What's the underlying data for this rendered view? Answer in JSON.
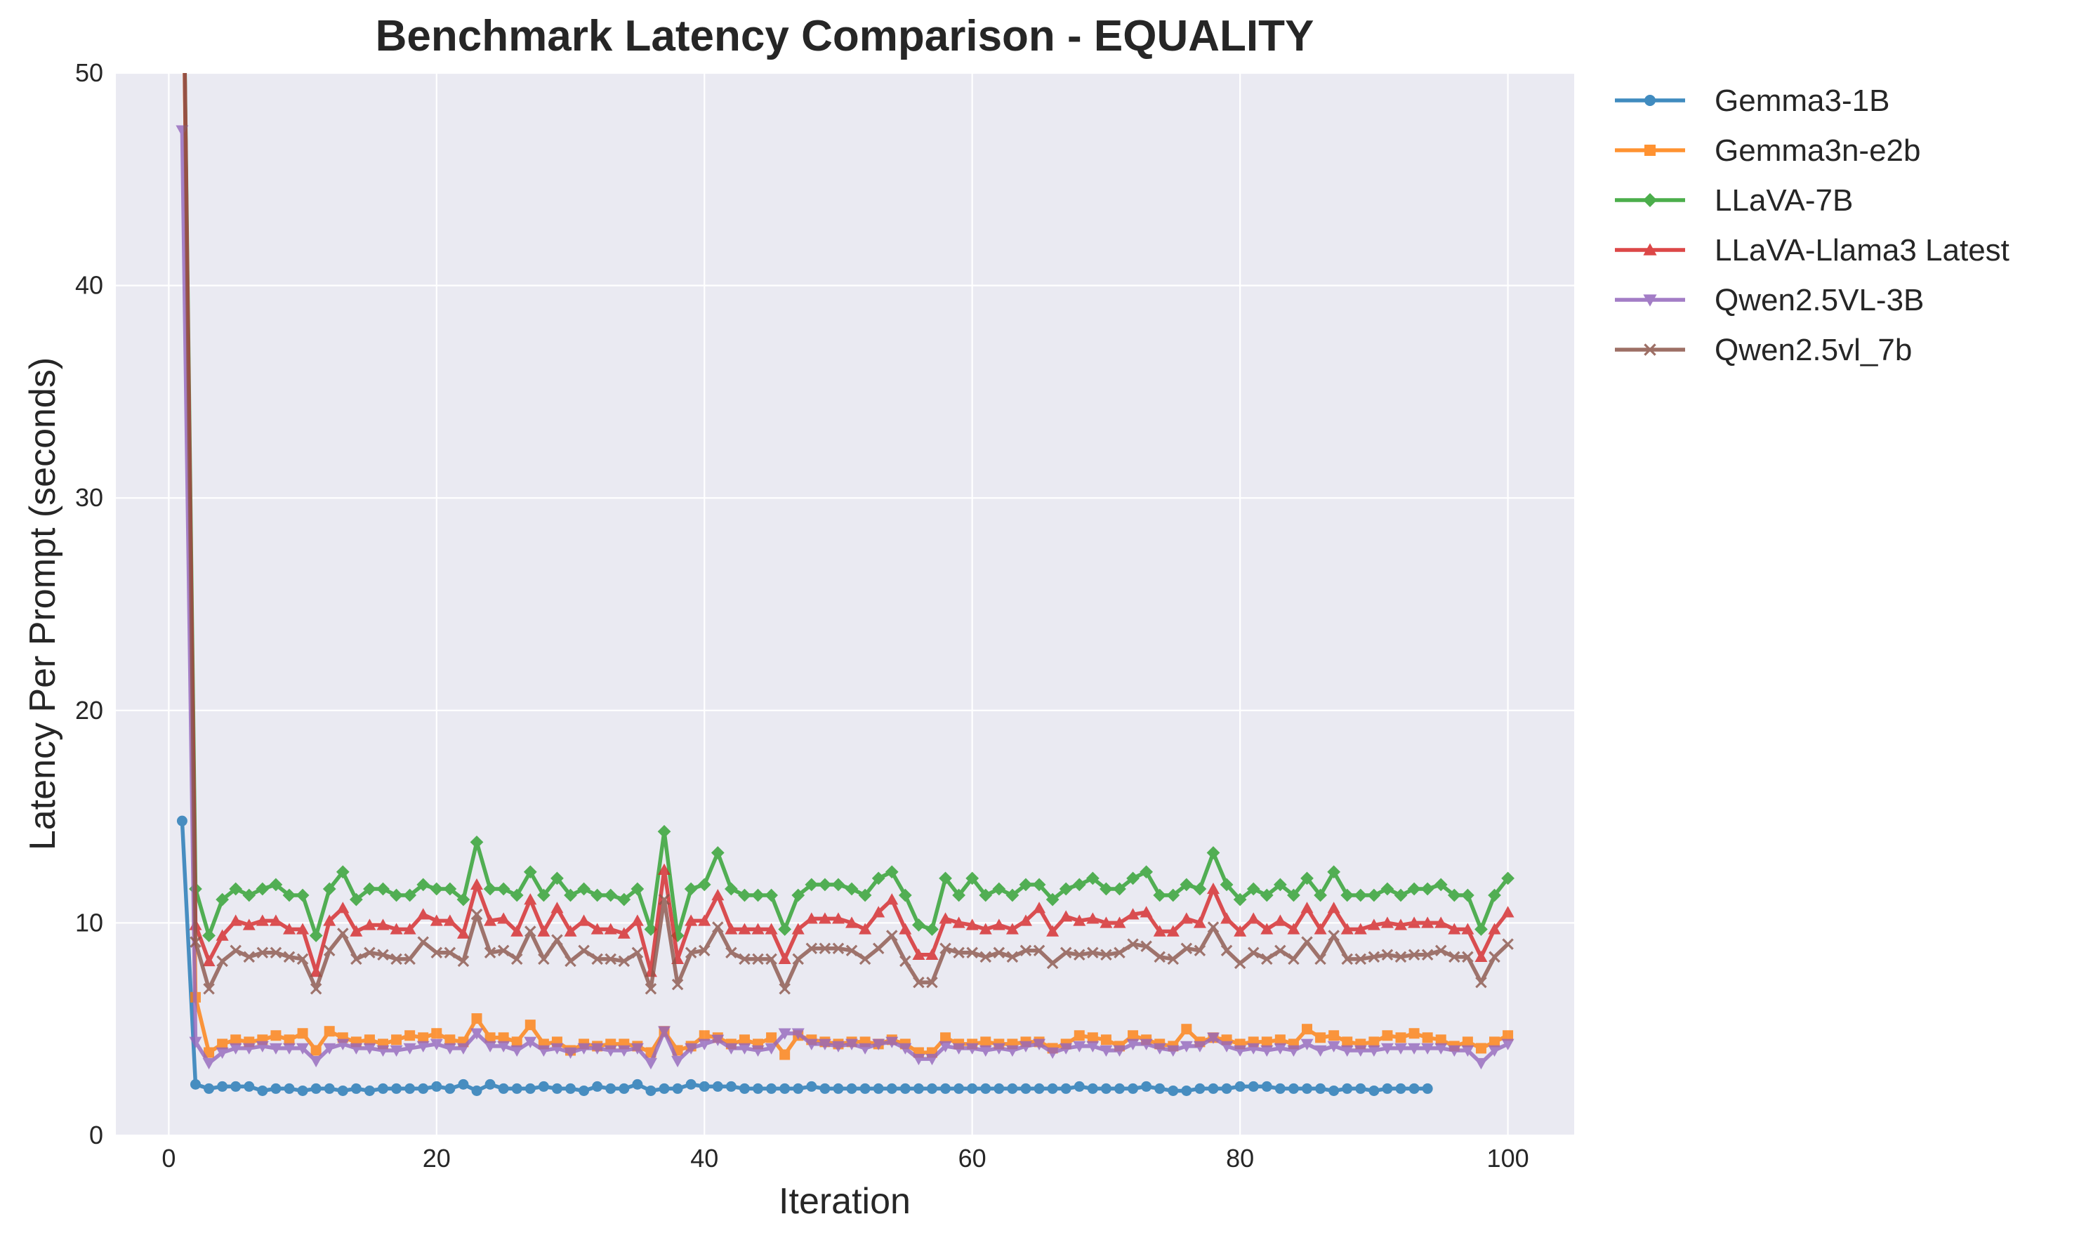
{
  "chart_data": {
    "type": "line",
    "title": "Benchmark Latency Comparison - EQUALITY",
    "xlabel": "Iteration",
    "ylabel": "Latency Per Prompt (seconds)",
    "xlim": [
      -3.95,
      104.95
    ],
    "ylim": [
      0,
      50
    ],
    "xticks": [
      0,
      20,
      40,
      60,
      80,
      100
    ],
    "yticks": [
      0,
      10,
      20,
      30,
      40,
      50
    ],
    "grid": true,
    "legend_position": "outside-right-top",
    "series": [
      {
        "name": "Gemma3-1B",
        "color": "#1f77b4",
        "marker": "circle",
        "x_start": 1,
        "values": [
          14.8,
          2.4,
          2.2,
          2.3,
          2.3,
          2.3,
          2.1,
          2.2,
          2.2,
          2.1,
          2.2,
          2.2,
          2.1,
          2.2,
          2.1,
          2.2,
          2.2,
          2.2,
          2.2,
          2.3,
          2.2,
          2.4,
          2.1,
          2.4,
          2.2,
          2.2,
          2.2,
          2.3,
          2.2,
          2.2,
          2.1,
          2.3,
          2.2,
          2.2,
          2.4,
          2.1,
          2.2,
          2.2,
          2.4,
          2.3,
          2.3,
          2.3,
          2.2,
          2.2,
          2.2,
          2.2,
          2.2,
          2.3,
          2.2,
          2.2,
          2.2,
          2.2,
          2.2,
          2.2,
          2.2,
          2.2,
          2.2,
          2.2,
          2.2,
          2.2,
          2.2,
          2.2,
          2.2,
          2.2,
          2.2,
          2.2,
          2.2,
          2.3,
          2.2,
          2.2,
          2.2,
          2.2,
          2.3,
          2.2,
          2.1,
          2.1,
          2.2,
          2.2,
          2.2,
          2.3,
          2.3,
          2.3,
          2.2,
          2.2,
          2.2,
          2.2,
          2.1,
          2.2,
          2.2,
          2.1,
          2.2,
          2.2,
          2.2,
          2.2
        ]
      },
      {
        "name": "Gemma3n-e2b",
        "color": "#ff7f0e",
        "marker": "square",
        "x_start": 1,
        "values": [
          60,
          6.5,
          3.9,
          4.3,
          4.5,
          4.4,
          4.5,
          4.7,
          4.5,
          4.8,
          4.0,
          4.9,
          4.6,
          4.4,
          4.5,
          4.3,
          4.5,
          4.7,
          4.6,
          4.8,
          4.5,
          4.4,
          5.5,
          4.6,
          4.6,
          4.4,
          5.2,
          4.3,
          4.4,
          4.0,
          4.3,
          4.2,
          4.3,
          4.3,
          4.2,
          3.9,
          4.9,
          4.0,
          4.2,
          4.7,
          4.6,
          4.3,
          4.5,
          4.3,
          4.6,
          3.8,
          4.7,
          4.5,
          4.4,
          4.3,
          4.4,
          4.4,
          4.3,
          4.5,
          4.3,
          3.9,
          3.9,
          4.6,
          4.3,
          4.3,
          4.4,
          4.3,
          4.3,
          4.4,
          4.4,
          4.1,
          4.3,
          4.7,
          4.6,
          4.5,
          4.2,
          4.7,
          4.5,
          4.3,
          4.2,
          5.0,
          4.4,
          4.6,
          4.5,
          4.3,
          4.4,
          4.4,
          4.5,
          4.3,
          5.0,
          4.6,
          4.7,
          4.4,
          4.3,
          4.4,
          4.7,
          4.6,
          4.8,
          4.6,
          4.5,
          4.2,
          4.4,
          4.1,
          4.4,
          4.7
        ]
      },
      {
        "name": "LLaVA-7B",
        "color": "#2ca02c",
        "marker": "diamond",
        "x_start": 1,
        "values": [
          60,
          11.6,
          9.4,
          11.1,
          11.6,
          11.3,
          11.6,
          11.8,
          11.3,
          11.3,
          9.4,
          11.6,
          12.4,
          11.1,
          11.6,
          11.6,
          11.3,
          11.3,
          11.8,
          11.6,
          11.6,
          11.1,
          13.8,
          11.6,
          11.6,
          11.3,
          12.4,
          11.3,
          12.1,
          11.3,
          11.6,
          11.3,
          11.3,
          11.1,
          11.6,
          9.7,
          14.3,
          9.4,
          11.6,
          11.8,
          13.3,
          11.6,
          11.3,
          11.3,
          11.3,
          9.7,
          11.3,
          11.8,
          11.8,
          11.8,
          11.6,
          11.3,
          12.1,
          12.4,
          11.3,
          9.9,
          9.7,
          12.1,
          11.3,
          12.1,
          11.3,
          11.6,
          11.3,
          11.8,
          11.8,
          11.1,
          11.6,
          11.8,
          12.1,
          11.6,
          11.6,
          12.1,
          12.4,
          11.3,
          11.3,
          11.8,
          11.6,
          13.3,
          11.8,
          11.1,
          11.6,
          11.3,
          11.8,
          11.3,
          12.1,
          11.3,
          12.4,
          11.3,
          11.3,
          11.3,
          11.6,
          11.3,
          11.6,
          11.6,
          11.8,
          11.3,
          11.3,
          9.7,
          11.3,
          12.1
        ]
      },
      {
        "name": "LLaVA-Llama3 Latest",
        "color": "#d62728",
        "marker": "triangle-up",
        "x_start": 1,
        "values": [
          60,
          9.9,
          8.2,
          9.4,
          10.1,
          9.9,
          10.1,
          10.1,
          9.7,
          9.7,
          7.7,
          10.1,
          10.7,
          9.6,
          9.9,
          9.9,
          9.7,
          9.7,
          10.4,
          10.1,
          10.1,
          9.5,
          11.8,
          10.1,
          10.2,
          9.6,
          11.1,
          9.6,
          10.7,
          9.6,
          10.1,
          9.7,
          9.7,
          9.5,
          10.1,
          7.7,
          12.5,
          8.3,
          10.1,
          10.1,
          11.3,
          9.7,
          9.7,
          9.7,
          9.7,
          8.3,
          9.7,
          10.2,
          10.2,
          10.2,
          10.0,
          9.7,
          10.5,
          11.1,
          9.7,
          8.5,
          8.5,
          10.2,
          10.0,
          9.9,
          9.7,
          9.9,
          9.7,
          10.1,
          10.7,
          9.6,
          10.3,
          10.1,
          10.2,
          10.0,
          10.0,
          10.4,
          10.5,
          9.6,
          9.6,
          10.2,
          10.0,
          11.6,
          10.2,
          9.6,
          10.2,
          9.7,
          10.1,
          9.7,
          10.7,
          9.7,
          10.7,
          9.7,
          9.7,
          9.9,
          10.0,
          9.9,
          10.0,
          10.0,
          10.0,
          9.7,
          9.7,
          8.4,
          9.7,
          10.5
        ]
      },
      {
        "name": "Qwen2.5VL-3B",
        "color": "#9467bd",
        "marker": "triangle-down",
        "x_start": 1,
        "values": [
          47.3,
          4.4,
          3.4,
          3.9,
          4.1,
          4.1,
          4.2,
          4.1,
          4.1,
          4.1,
          3.5,
          4.1,
          4.3,
          4.1,
          4.1,
          4.0,
          4.0,
          4.1,
          4.2,
          4.3,
          4.1,
          4.1,
          4.8,
          4.2,
          4.2,
          4.0,
          4.4,
          4.0,
          4.1,
          3.9,
          4.1,
          4.1,
          4.0,
          4.0,
          4.1,
          3.4,
          4.9,
          3.5,
          4.1,
          4.3,
          4.5,
          4.1,
          4.1,
          4.0,
          4.1,
          4.8,
          4.8,
          4.3,
          4.3,
          4.2,
          4.3,
          4.1,
          4.3,
          4.4,
          4.1,
          3.6,
          3.6,
          4.2,
          4.1,
          4.1,
          4.0,
          4.1,
          4.0,
          4.2,
          4.3,
          3.9,
          4.1,
          4.2,
          4.2,
          4.0,
          4.0,
          4.3,
          4.3,
          4.1,
          4.0,
          4.2,
          4.2,
          4.6,
          4.2,
          4.0,
          4.1,
          4.0,
          4.1,
          4.0,
          4.3,
          4.0,
          4.2,
          4.0,
          4.0,
          4.0,
          4.1,
          4.1,
          4.1,
          4.1,
          4.1,
          4.0,
          4.0,
          3.4,
          4.0,
          4.3
        ]
      },
      {
        "name": "Qwen2.5vl_7b",
        "color": "#8c564b",
        "marker": "x",
        "x_start": 1,
        "values": [
          60,
          9.1,
          6.9,
          8.2,
          8.7,
          8.4,
          8.6,
          8.6,
          8.4,
          8.3,
          6.9,
          8.7,
          9.5,
          8.3,
          8.6,
          8.5,
          8.3,
          8.3,
          9.1,
          8.6,
          8.6,
          8.2,
          10.4,
          8.6,
          8.7,
          8.3,
          9.6,
          8.3,
          9.2,
          8.2,
          8.7,
          8.3,
          8.3,
          8.2,
          8.6,
          6.9,
          11.1,
          7.1,
          8.6,
          8.7,
          9.8,
          8.6,
          8.3,
          8.3,
          8.3,
          6.9,
          8.3,
          8.8,
          8.8,
          8.8,
          8.7,
          8.3,
          8.8,
          9.4,
          8.2,
          7.2,
          7.2,
          8.8,
          8.6,
          8.6,
          8.4,
          8.6,
          8.4,
          8.7,
          8.7,
          8.1,
          8.6,
          8.5,
          8.6,
          8.5,
          8.6,
          9.0,
          8.9,
          8.4,
          8.3,
          8.8,
          8.7,
          9.8,
          8.7,
          8.1,
          8.6,
          8.3,
          8.7,
          8.3,
          9.1,
          8.3,
          9.4,
          8.3,
          8.3,
          8.4,
          8.5,
          8.4,
          8.5,
          8.5,
          8.7,
          8.4,
          8.4,
          7.2,
          8.4,
          9.0
        ]
      }
    ]
  }
}
